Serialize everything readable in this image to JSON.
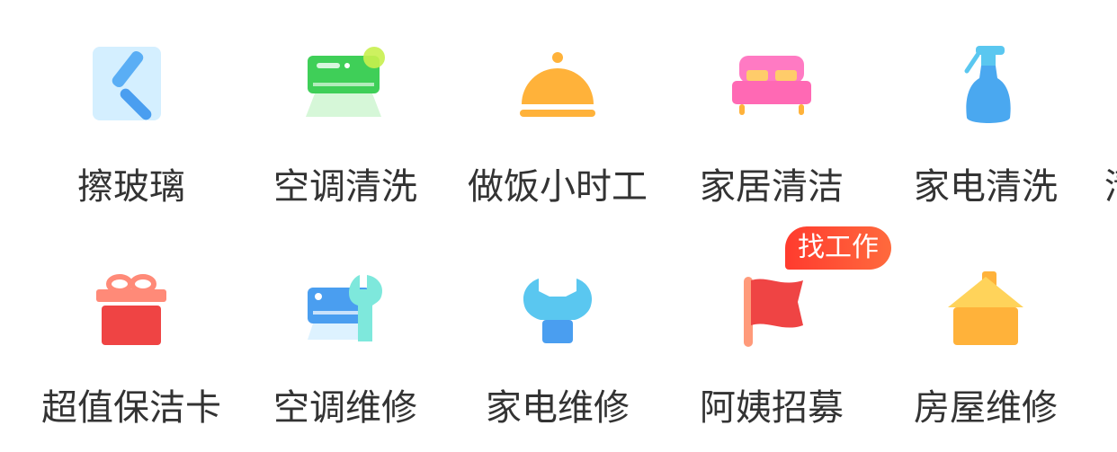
{
  "services_row1": [
    {
      "label": "擦玻璃",
      "icon": "window-wiper-icon"
    },
    {
      "label": "空调清洗",
      "icon": "air-conditioner-icon"
    },
    {
      "label": "做饭小时工",
      "icon": "food-cloche-icon"
    },
    {
      "label": "家居清洁",
      "icon": "bed-icon"
    },
    {
      "label": "家电清洗",
      "icon": "spray-bottle-icon"
    }
  ],
  "services_row2": [
    {
      "label": "超值保洁卡",
      "icon": "gift-box-icon"
    },
    {
      "label": "空调维修",
      "icon": "ac-repair-wrench-icon"
    },
    {
      "label": "家电维修",
      "icon": "wrench-icon"
    },
    {
      "label": "阿姨招募",
      "icon": "red-flag-icon",
      "badge": "找工作"
    },
    {
      "label": "房屋维修",
      "icon": "house-icon"
    }
  ],
  "partial_next_item_text": "清",
  "colors": {
    "text": "#333333",
    "badge": "#ff3b2e"
  }
}
